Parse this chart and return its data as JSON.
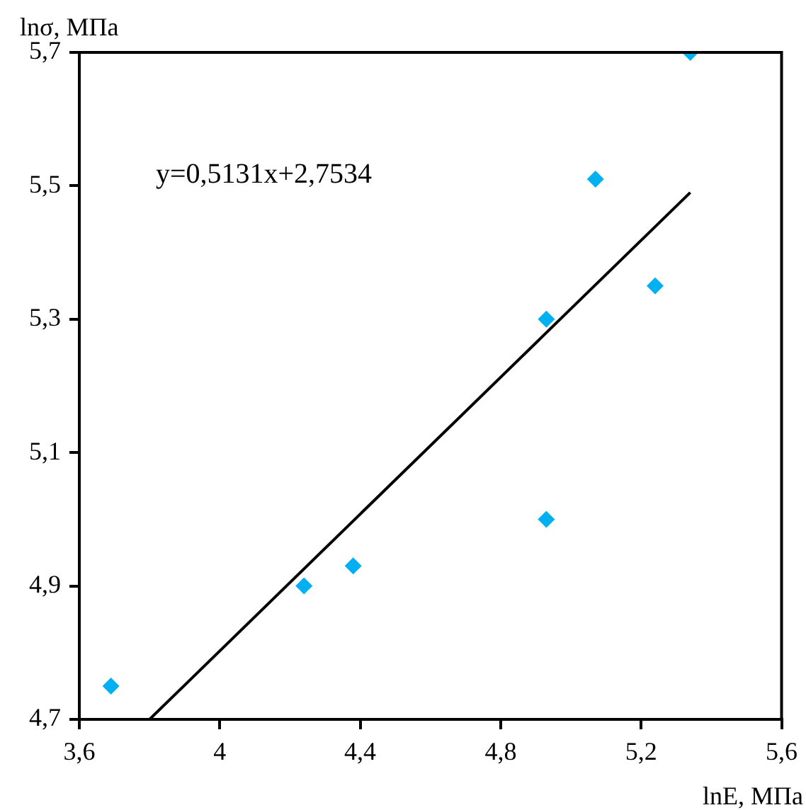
{
  "chart_data": {
    "type": "scatter",
    "xlabel": "lnE, МПа",
    "ylabel": "lnσ, МПа",
    "annotations": [
      "y=0,5131x+2,7534"
    ],
    "series": [
      {
        "color": "#00b0f0",
        "marker": "diamond",
        "x": [
          3.69,
          4.24,
          4.38,
          4.93,
          4.93,
          5.07,
          5.24,
          5.34
        ],
        "values": [
          4.75,
          4.9,
          4.93,
          5.0,
          5.3,
          5.51,
          5.35,
          5.7
        ]
      },
      {
        "type": "line",
        "color": "#000000",
        "marker": "none",
        "line_style": "solid",
        "x": [
          3.8,
          5.34
        ],
        "values": [
          4.7,
          5.49
        ]
      }
    ],
    "xlim": [
      3.6,
      5.6
    ],
    "xticks": [
      {
        "value": 3.6,
        "label": "3,6"
      },
      4,
      {
        "value": 4.4,
        "label": "4,4"
      },
      {
        "value": 4.8,
        "label": "4,8"
      },
      {
        "value": 5.2,
        "label": "5,2"
      },
      {
        "value": 5.6,
        "label": "5,6"
      }
    ],
    "ylim": [
      4.7,
      5.7
    ],
    "yticks": [
      {
        "value": 4.7,
        "label": "4,7"
      },
      {
        "value": 4.9,
        "label": "4,9"
      },
      {
        "value": 5.1,
        "label": "5,1"
      },
      {
        "value": 5.3,
        "label": "5,3"
      },
      {
        "value": 5.5,
        "label": "5,5"
      },
      {
        "value": 5.7,
        "label": "5,7"
      }
    ],
    "grid": false,
    "legend": false
  }
}
